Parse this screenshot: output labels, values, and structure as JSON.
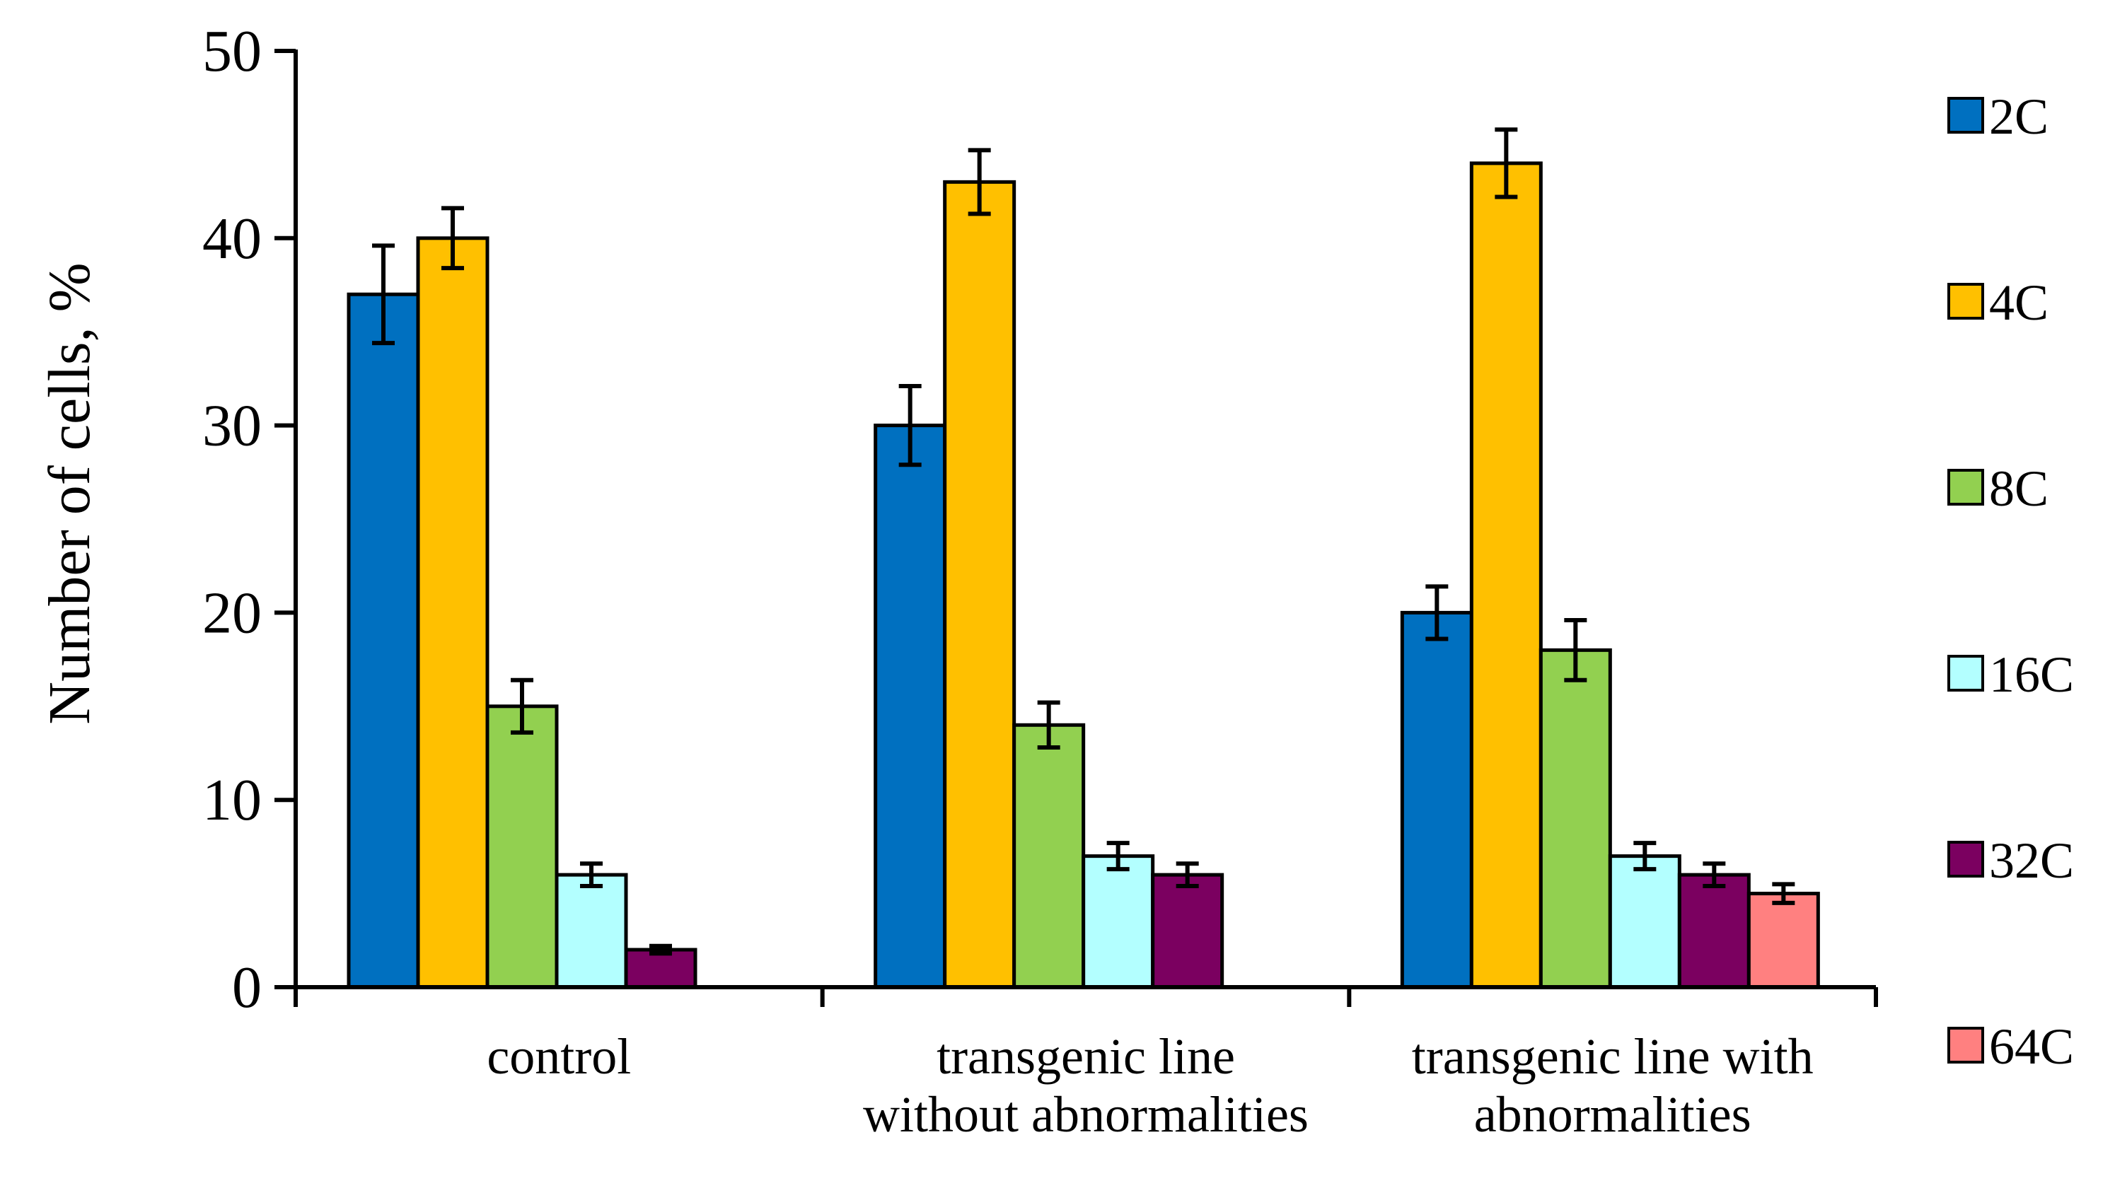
{
  "chart_data": {
    "type": "bar",
    "title": "",
    "xlabel": "",
    "ylabel": "Number of cells, %",
    "ylim": [
      0,
      50
    ],
    "yticks": [
      0,
      10,
      20,
      30,
      40,
      50
    ],
    "grid": false,
    "legend_position": "right",
    "categories": [
      [
        "control"
      ],
      [
        "transgenic line",
        "without abnormalities"
      ],
      [
        "transgenic line with",
        "abnormalities"
      ]
    ],
    "series": [
      {
        "name": "2C",
        "color": "#0070C0",
        "values": [
          37,
          30,
          20
        ],
        "errors": [
          2.6,
          2.1,
          1.4
        ]
      },
      {
        "name": "4C",
        "color": "#FFC000",
        "values": [
          40,
          43,
          44
        ],
        "errors": [
          1.6,
          1.7,
          1.8
        ]
      },
      {
        "name": "8C",
        "color": "#92D050",
        "values": [
          15,
          14,
          18
        ],
        "errors": [
          1.4,
          1.2,
          1.6
        ]
      },
      {
        "name": "16C",
        "color": "#B3FFFF",
        "values": [
          6,
          7,
          7
        ],
        "errors": [
          0.6,
          0.7,
          0.7
        ]
      },
      {
        "name": "32C",
        "color": "#7B0060",
        "values": [
          2,
          6,
          6
        ],
        "errors": [
          0.2,
          0.6,
          0.6
        ]
      },
      {
        "name": "64C",
        "color": "#FF8080",
        "values": [
          null,
          null,
          5
        ],
        "errors": [
          null,
          null,
          0.5
        ]
      }
    ]
  }
}
